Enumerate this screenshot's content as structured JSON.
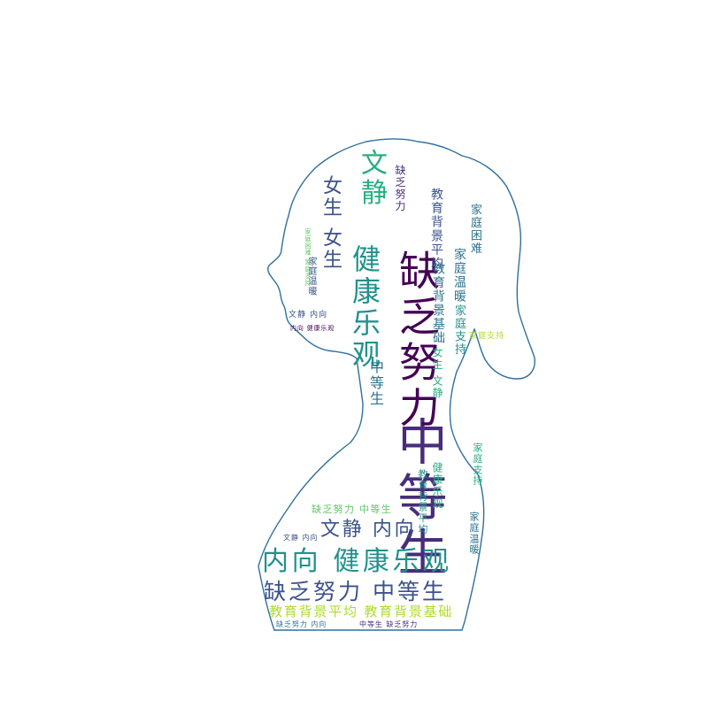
{
  "palette": [
    "#440154",
    "#472d7b",
    "#3b528b",
    "#2c728e",
    "#21918c",
    "#28ae80",
    "#5ec962",
    "#addc30",
    "#fde725"
  ],
  "outline_color": "#2f6f9f",
  "words": [
    {
      "text": "中等生",
      "size": 1.0,
      "orient": "v",
      "color": 1
    },
    {
      "text": "缺乏努力",
      "size": 0.95,
      "orient": "v",
      "color": 0
    },
    {
      "text": "健康乐观",
      "size": 0.6,
      "orient": "v",
      "color": 4
    },
    {
      "text": "文静",
      "size": 0.55,
      "orient": "v",
      "color": 5
    },
    {
      "text": "内向 健康乐观",
      "size": 0.62,
      "orient": "h",
      "color": 4
    },
    {
      "text": "缺乏努力 中等生",
      "size": 0.5,
      "orient": "h",
      "color": 2
    },
    {
      "text": "文静 内向",
      "size": 0.42,
      "orient": "h",
      "color": 2
    },
    {
      "text": "女生 女生",
      "size": 0.45,
      "orient": "v",
      "color": 2
    },
    {
      "text": "教育背景平均 教育背景基础",
      "size": 0.3,
      "orient": "h",
      "color": 7
    },
    {
      "text": "中等生",
      "size": 0.3,
      "orient": "v",
      "color": 3
    },
    {
      "text": "教育背景平均",
      "size": 0.26,
      "orient": "v",
      "color": 2
    },
    {
      "text": "教育背景基础",
      "size": 0.26,
      "orient": "v",
      "color": 3
    },
    {
      "text": "家庭温暖",
      "size": 0.25,
      "orient": "v",
      "color": 3
    },
    {
      "text": "家庭支持",
      "size": 0.24,
      "orient": "v",
      "color": 4
    },
    {
      "text": "家庭困难",
      "size": 0.24,
      "orient": "v",
      "color": 3
    },
    {
      "text": "缺乏努力",
      "size": 0.22,
      "orient": "v",
      "color": 1
    },
    {
      "text": "健康乐观",
      "size": 0.22,
      "orient": "v",
      "color": 5
    },
    {
      "text": "女生 文静",
      "size": 0.22,
      "orient": "v",
      "color": 5
    },
    {
      "text": "缺乏努力 中等生",
      "size": 0.2,
      "orient": "h",
      "color": 6
    },
    {
      "text": "内向 健康乐观",
      "size": 0.12,
      "orient": "h",
      "color": 0
    },
    {
      "text": "文静 内向",
      "size": 0.16,
      "orient": "h",
      "color": 2
    },
    {
      "text": "家庭支持",
      "size": 0.16,
      "orient": "h",
      "color": 7
    },
    {
      "text": "中等生 缺乏努力",
      "size": 0.13,
      "orient": "h",
      "color": 1
    },
    {
      "text": "缺乏努力 内向",
      "size": 0.13,
      "orient": "h",
      "color": 3
    },
    {
      "text": "文静 内向",
      "size": 0.14,
      "orient": "h",
      "color": 2
    },
    {
      "text": "家庭困难 家庭支持",
      "size": 0.12,
      "orient": "v",
      "color": 6
    },
    {
      "text": "家庭温暖",
      "size": 0.2,
      "orient": "v",
      "color": 3
    },
    {
      "text": "教育背景平均",
      "size": 0.2,
      "orient": "v",
      "color": 4
    },
    {
      "text": "家庭支持",
      "size": 0.2,
      "orient": "v",
      "color": 5
    },
    {
      "text": "家庭温暖",
      "size": 0.18,
      "orient": "v",
      "color": 2
    }
  ]
}
